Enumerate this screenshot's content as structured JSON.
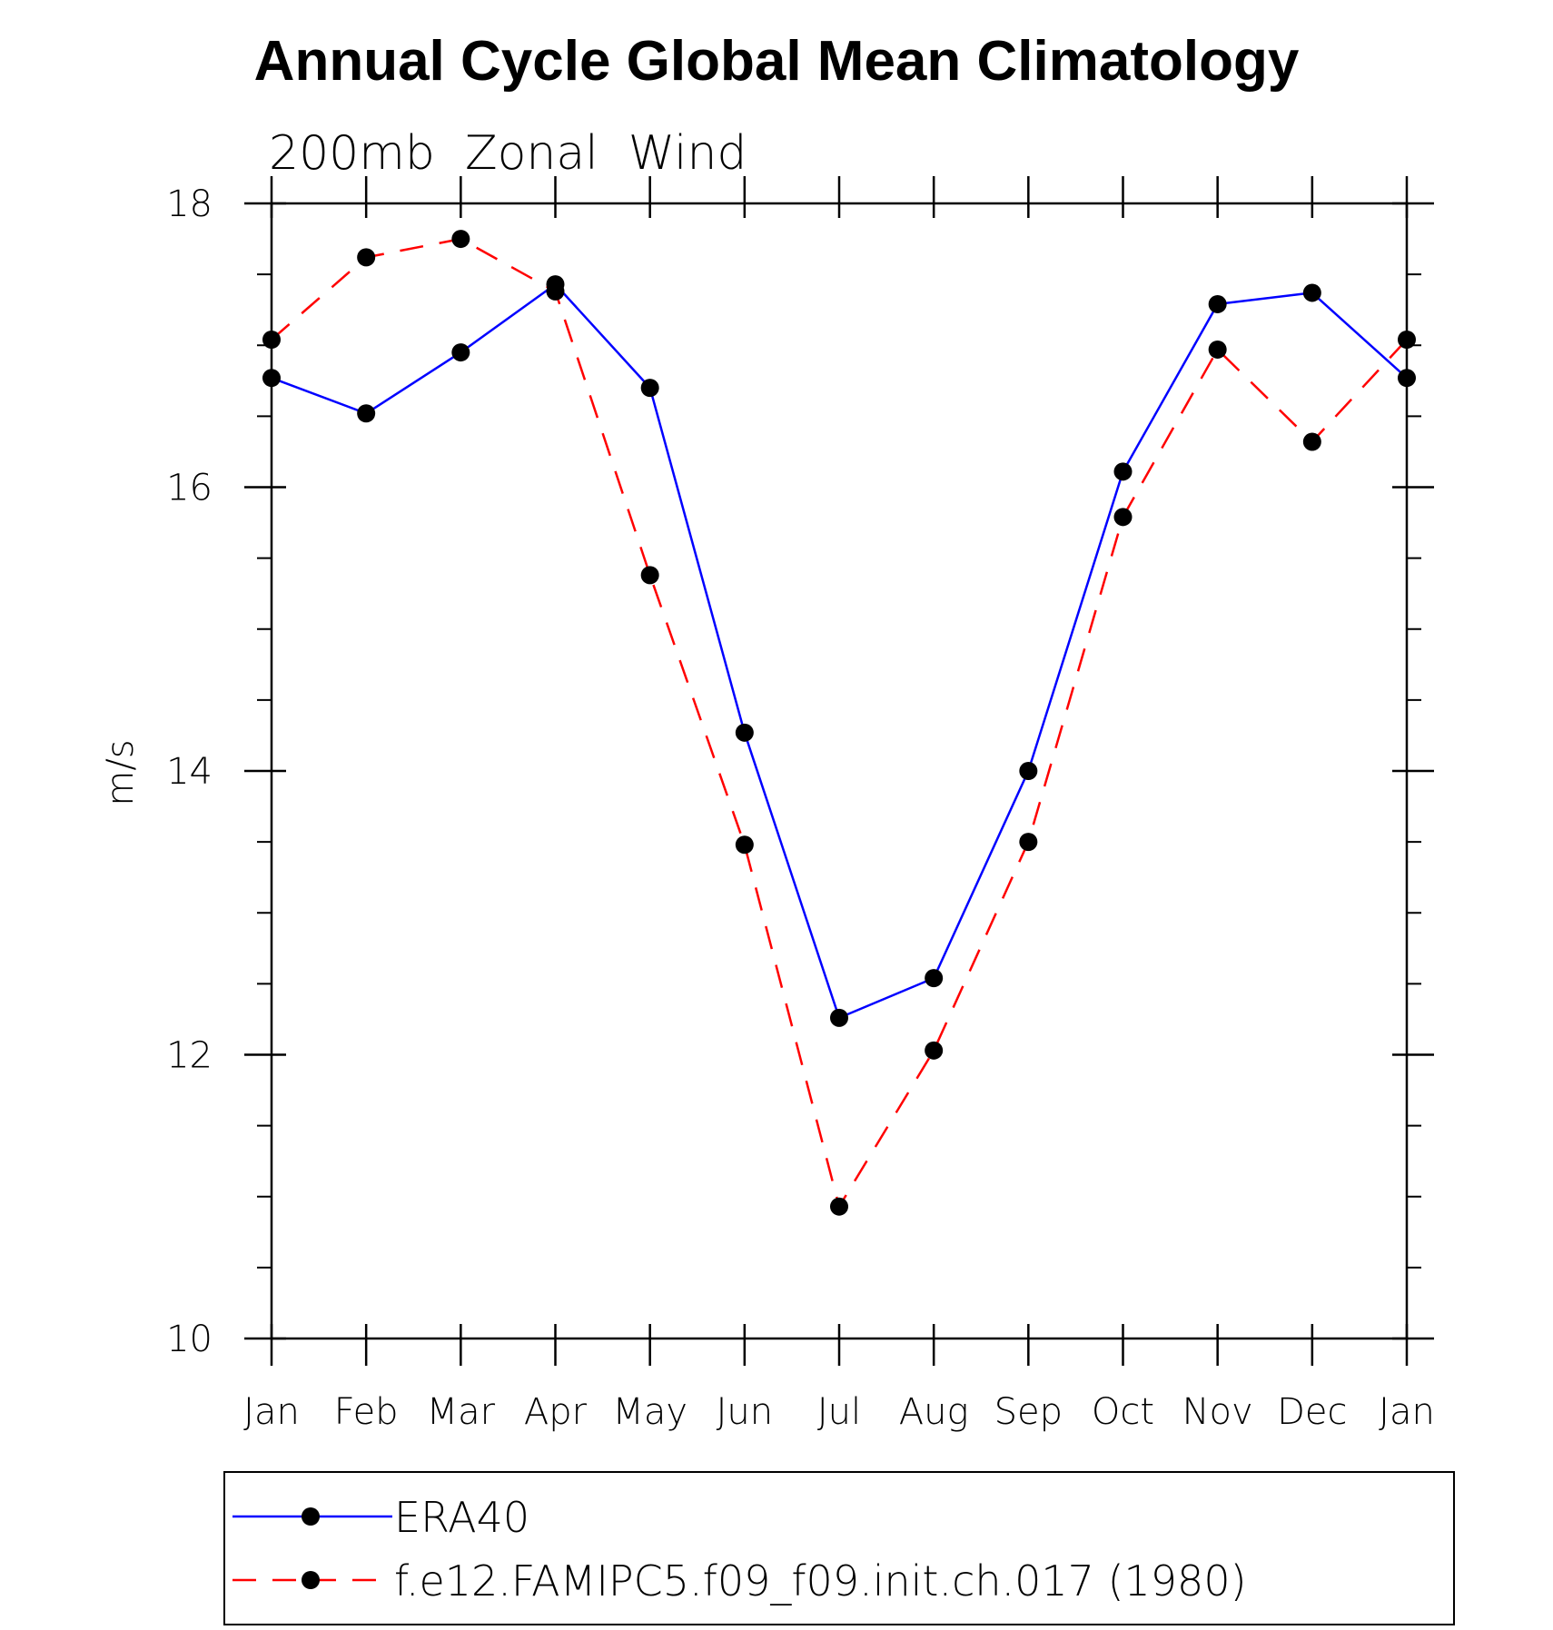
{
  "chart_data": {
    "type": "line",
    "title": "Annual Cycle Global Mean Climatology",
    "subtitle": "200mb  Zonal  Wind",
    "xlabel": "",
    "ylabel": "m/s",
    "categories": [
      "Jan",
      "Feb",
      "Mar",
      "Apr",
      "May",
      "Jun",
      "Jul",
      "Aug",
      "Sep",
      "Oct",
      "Nov",
      "Dec",
      "Jan"
    ],
    "ylim": [
      10,
      18
    ],
    "yticks": [
      10,
      12,
      14,
      16,
      18
    ],
    "yminor_step": 0.5,
    "grid": false,
    "legend_position": "bottom",
    "series": [
      {
        "name": "ERA40",
        "color": "#0000ff",
        "dash": "solid",
        "marker": "filled-circle",
        "values": [
          16.77,
          16.52,
          16.95,
          17.43,
          16.7,
          14.27,
          12.26,
          12.54,
          14.0,
          16.11,
          17.29,
          17.37,
          16.77
        ]
      },
      {
        "name": "f.e12.FAMIPC5.f09_f09.init.ch.017 (1980)",
        "color": "#ff0000",
        "dash": "dashed",
        "marker": "filled-circle",
        "values": [
          17.04,
          17.62,
          17.75,
          17.38,
          15.38,
          13.48,
          10.93,
          12.03,
          13.5,
          15.79,
          16.97,
          16.32,
          17.04
        ]
      }
    ]
  }
}
